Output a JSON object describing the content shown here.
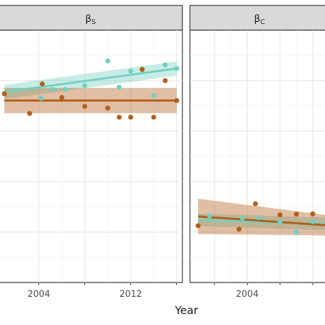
{
  "chart_data": {
    "type": "scatter",
    "xlabel": "Year",
    "colors": {
      "teal": "#74cfbf",
      "brown": "#b15f1b"
    },
    "panels": [
      {
        "strip": "βS",
        "symbol": "β",
        "subscript": "S",
        "xlim": [
          2000.5,
          2016.5
        ],
        "ylim": [
          0,
          1
        ],
        "xticks": [
          2004,
          2008,
          2012,
          2016
        ],
        "xtick_labels": [
          "2004",
          "",
          "2012",
          ""
        ],
        "series": [
          {
            "color": "teal",
            "points": [
              [
                2002,
                0.762
              ],
              [
                2004.2,
                0.73
              ],
              [
                2005.2,
                0.765
              ],
              [
                2006.3,
                0.765
              ],
              [
                2008,
                0.78
              ],
              [
                2010,
                0.878
              ],
              [
                2011,
                0.774
              ],
              [
                2012,
                0.838
              ],
              [
                2013,
                0.846
              ],
              [
                2014,
                0.741
              ],
              [
                2015,
                0.863
              ],
              [
                2016,
                0.848
              ]
            ],
            "fit": {
              "y0": 0.755,
              "y1": 0.848,
              "band": [
                0.028,
                0.028
              ]
            }
          },
          {
            "color": "brown",
            "points": [
              [
                2001,
                0.748
              ],
              [
                2003.2,
                0.67
              ],
              [
                2004.3,
                0.787
              ],
              [
                2006,
                0.733
              ],
              [
                2008,
                0.698
              ],
              [
                2010,
                0.691
              ],
              [
                2011,
                0.655
              ],
              [
                2012,
                0.655
              ],
              [
                2013,
                0.844
              ],
              [
                2014,
                0.655
              ],
              [
                2015,
                0.8
              ],
              [
                2016,
                0.721
              ]
            ],
            "fit": {
              "y0": 0.721,
              "y1": 0.721,
              "band": [
                0.05,
                0.05
              ]
            }
          }
        ]
      },
      {
        "strip": "βC",
        "symbol": "β",
        "subscript": "C",
        "xlim": [
          2000.5,
          2009
        ],
        "ylim": [
          0,
          1
        ],
        "xticks": [
          2002,
          2004,
          2006,
          2008
        ],
        "xtick_labels": [
          "",
          "2004",
          "",
          ""
        ],
        "series": [
          {
            "color": "teal",
            "points": [
              [
                2001.7,
                0.264
              ],
              [
                2003.7,
                0.255
              ],
              [
                2004.7,
                0.257
              ],
              [
                2006,
                0.24
              ],
              [
                2007,
                0.2
              ],
              [
                2008,
                0.241
              ]
            ],
            "fit": {
              "y0": 0.248,
              "y1": 0.232,
              "band": [
                0.025,
                0.025
              ]
            }
          },
          {
            "color": "brown",
            "points": [
              [
                2001,
                0.225
              ],
              [
                2003.5,
                0.211
              ],
              [
                2004.5,
                0.312
              ],
              [
                2006,
                0.268
              ],
              [
                2007,
                0.271
              ],
              [
                2008,
                0.272
              ]
            ],
            "fit": {
              "y0": 0.262,
              "y1": 0.226,
              "band": [
                0.07,
                0.04
              ]
            }
          }
        ]
      }
    ]
  }
}
